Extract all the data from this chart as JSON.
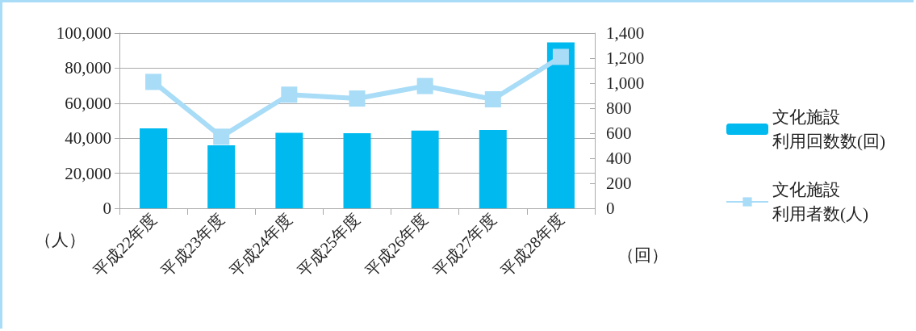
{
  "chart_data": {
    "type": "bar",
    "categories": [
      "平成22年度",
      "平成23年度",
      "平成24年度",
      "平成25年度",
      "平成26年度",
      "平成27年度",
      "平成28年度"
    ],
    "ylabel": "（人）",
    "y2label": "（回）",
    "series": [
      {
        "name": "文化施設利用回数数(回)",
        "color": "#00b9ef",
        "values": [
          45600,
          36000,
          43100,
          42900,
          44400,
          44700,
          94700
        ]
      },
      {
        "name": "文化施設利用者数(人)",
        "type": "line",
        "axis": "y2",
        "color": "#a8dcf7",
        "marker": "square",
        "values": [
          1010,
          572,
          908,
          877,
          977,
          871,
          1210
        ]
      }
    ],
    "ylim": [
      0,
      100000
    ],
    "yticks": [
      0,
      {
        "value": 20000,
        "label": "20,000"
      },
      {
        "value": 40000,
        "label": "40,000"
      },
      {
        "value": 60000,
        "label": "60,000"
      },
      {
        "value": 80000,
        "label": "80,000"
      },
      {
        "value": 100000,
        "label": "100,000"
      }
    ],
    "y2lim": [
      0,
      1400
    ],
    "y2ticks": [
      0,
      200,
      400,
      600,
      800,
      {
        "value": 1000,
        "label": "1,000"
      },
      {
        "value": 1200,
        "label": "1,200"
      },
      {
        "value": 1400,
        "label": "1,400"
      }
    ],
    "grid": "y",
    "legend": "right"
  }
}
